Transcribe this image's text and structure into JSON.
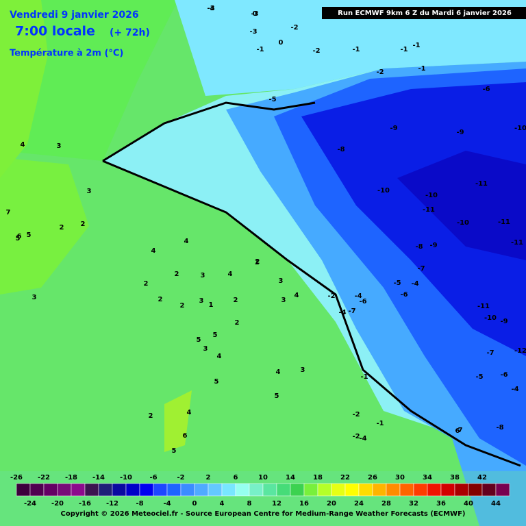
{
  "header": {
    "date": "Vendredi 9 janvier 2026",
    "time": "7:00 locale",
    "lead": "(+ 72h)",
    "variable": "Température à 2m (°C)",
    "run": "Run ECMWF 9km 6 Z du Mardi 6 janvier 2026"
  },
  "footer": {
    "copyright": "Copyright © 2026 Meteociel.fr - Source European Centre for Medium-Range Weather Forecasts (ECMWF)"
  },
  "colorbar": {
    "range": [
      -26,
      46
    ],
    "colors": [
      "#3c003c",
      "#500050",
      "#640064",
      "#780a78",
      "#8c0a8c",
      "#3c1450",
      "#1e1e78",
      "#0a0aa0",
      "#0000c8",
      "#0000f0",
      "#1e46ff",
      "#1e64ff",
      "#3c8cff",
      "#50aaff",
      "#64c8ff",
      "#78e6ff",
      "#96fff0",
      "#78f0c8",
      "#5ae6a0",
      "#46dc78",
      "#3cd250",
      "#78f03c",
      "#b4ff28",
      "#e6ff14",
      "#ffff00",
      "#ffdc00",
      "#ffb400",
      "#ff8c00",
      "#ff6400",
      "#ff3c00",
      "#f01400",
      "#d20000",
      "#aa0000",
      "#820000",
      "#64001e",
      "#780050"
    ],
    "top_labels": [
      -26,
      -22,
      -18,
      -14,
      -10,
      -6,
      -2,
      2,
      6,
      10,
      14,
      18,
      22,
      26,
      30,
      34,
      38,
      42
    ],
    "bottom_labels": [
      -24,
      -20,
      -16,
      -12,
      -8,
      -4,
      0,
      4,
      8,
      12,
      16,
      20,
      24,
      28,
      32,
      36,
      40,
      44
    ]
  },
  "contour_labels": [
    "-3",
    "0",
    "-3",
    "-2",
    "-1",
    "0",
    "-2",
    "-1",
    "-1",
    "-2",
    "-1",
    "-1",
    "-5",
    "-6",
    "-9",
    "-10",
    "-9",
    "-8",
    "-11",
    "-10",
    "-10",
    "-11",
    "-10",
    "-11",
    "-11",
    "-9",
    "-8",
    "-7",
    "-6",
    "-5",
    "-4",
    "-4",
    "-6",
    "-7",
    "-11",
    "-10",
    "-9",
    "-12",
    "-7",
    "-6",
    "-5",
    "-4",
    "-8",
    "-7",
    "6",
    "5",
    "4",
    "3",
    "3",
    "7",
    "6",
    "5",
    "2",
    "2",
    "4",
    "4",
    "2",
    "3",
    "2",
    "3",
    "4",
    "2",
    "2",
    "3",
    "2",
    "4",
    "3",
    "3",
    "2",
    "1",
    "1",
    "2",
    "5",
    "5",
    "5",
    "3",
    "4",
    "4",
    "5",
    "3",
    "-1",
    "-2",
    "-1",
    "-2",
    "2",
    "5",
    "6",
    "4",
    "-2",
    "-4",
    "-4",
    "-4",
    "-3"
  ]
}
